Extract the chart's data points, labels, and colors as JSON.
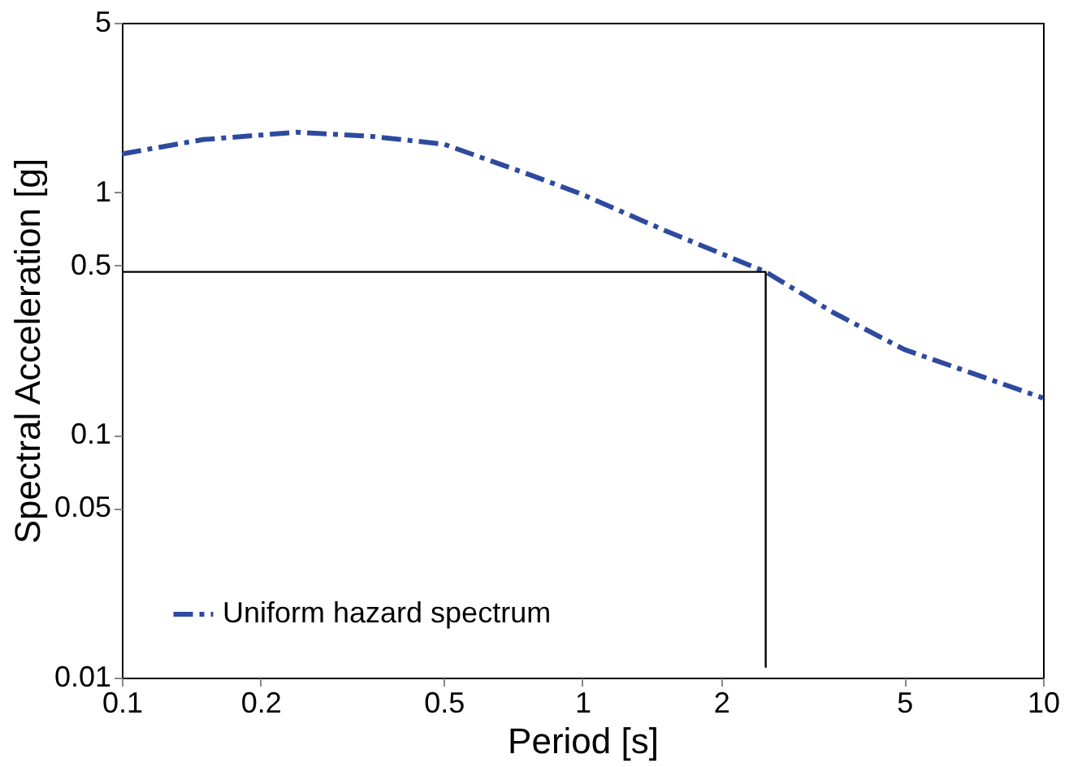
{
  "chart_data": {
    "type": "line",
    "xlabel": "Period [s]",
    "ylabel": "Spectral Acceleration [g]",
    "log": "xy",
    "xlim": [
      0.1,
      10
    ],
    "ylim": [
      0.01,
      5
    ],
    "xticks": [
      0.1,
      0.2,
      0.5,
      1,
      2,
      5,
      10
    ],
    "yticks": [
      0.01,
      0.05,
      0.1,
      0.5,
      1,
      5
    ],
    "grid": false,
    "legend": "bottom left",
    "marker": "none",
    "series": [
      {
        "name": "Uniform hazard spectrum",
        "color": "#2e4a9e",
        "line_style": "dashdot",
        "x": [
          0.1,
          0.15,
          0.24,
          0.35,
          0.5,
          0.78,
          1,
          1.5,
          2.5,
          3.5,
          5,
          7,
          10
        ],
        "values": [
          1.44,
          1.65,
          1.77,
          1.7,
          1.58,
          1.17,
          0.98,
          0.7,
          0.47,
          0.32,
          0.225,
          0.18,
          0.142
        ]
      },
      {
        "color": "#000000",
        "line_style": "solid",
        "x": [
          0.1,
          2.5,
          2.5
        ],
        "values": [
          0.47,
          0.47,
          0.011
        ]
      }
    ]
  }
}
